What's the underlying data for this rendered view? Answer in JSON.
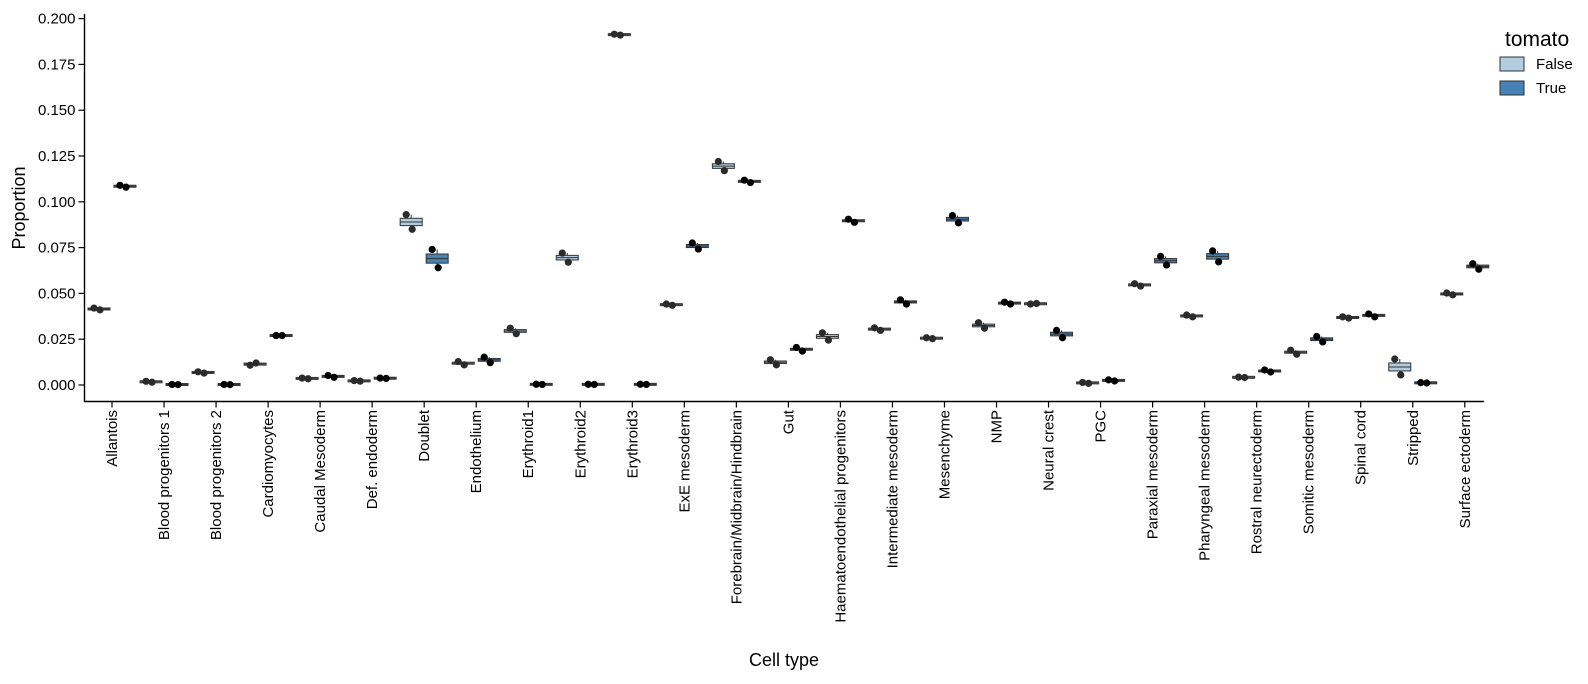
{
  "chart_data": {
    "type": "boxplot",
    "title": "",
    "xlabel": "Cell type",
    "ylabel": "Proportion",
    "ylim": [
      -0.01,
      0.2
    ],
    "yticks": [
      0.0,
      0.025,
      0.05,
      0.075,
      0.1,
      0.125,
      0.15,
      0.175,
      0.2
    ],
    "ytick_labels": [
      "0.000",
      "0.025",
      "0.050",
      "0.075",
      "0.100",
      "0.125",
      "0.150",
      "0.175",
      "0.200"
    ],
    "grid": false,
    "legend": {
      "title": "tomato",
      "placement": "top-right",
      "entries": [
        {
          "label": "False",
          "color": "#b3cde0"
        },
        {
          "label": "True",
          "color": "#4682b4"
        }
      ]
    },
    "categories": [
      "Allantois",
      "Blood progenitors 1",
      "Blood progenitors 2",
      "Cardiomyocytes",
      "Caudal Mesoderm",
      "Def. endoderm",
      "Doublet",
      "Endothelium",
      "Erythroid1",
      "Erythroid2",
      "Erythroid3",
      "ExE mesoderm",
      "Forebrain/Midbrain/Hindbrain",
      "Gut",
      "Haematoendothelial progenitors",
      "Intermediate mesoderm",
      "Mesenchyme",
      "NMP",
      "Neural crest",
      "PGC",
      "Paraxial mesoderm",
      "Pharyngeal mesoderm",
      "Rostral neurectoderm",
      "Somitic mesoderm",
      "Spinal cord",
      "Stripped",
      "Surface ectoderm"
    ],
    "series": [
      {
        "name": "False",
        "color": "#b3cde0",
        "points": [
          [
            0.042,
            0.041
          ],
          [
            0.002,
            0.0015
          ],
          [
            0.0072,
            0.0065
          ],
          [
            0.0108,
            0.012
          ],
          [
            0.0038,
            0.0034
          ],
          [
            0.0024,
            0.0021
          ],
          [
            0.093,
            0.085
          ],
          [
            0.0128,
            0.011
          ],
          [
            0.031,
            0.028
          ],
          [
            0.072,
            0.067
          ],
          [
            0.1915,
            0.191
          ],
          [
            0.0442,
            0.0435
          ],
          [
            0.122,
            0.117
          ],
          [
            0.0138,
            0.011
          ],
          [
            0.0285,
            0.0245
          ],
          [
            0.0312,
            0.0298
          ],
          [
            0.0258,
            0.0253
          ],
          [
            0.034,
            0.031
          ],
          [
            0.0442,
            0.0445
          ],
          [
            0.0014,
            0.0009
          ],
          [
            0.0553,
            0.054
          ],
          [
            0.0382,
            0.0372
          ],
          [
            0.0043,
            0.0041
          ],
          [
            0.019,
            0.0168
          ],
          [
            0.0372,
            0.0365
          ],
          [
            0.0142,
            0.0055
          ],
          [
            0.0502,
            0.0492
          ]
        ]
      },
      {
        "name": "True",
        "color": "#4682b4",
        "points": [
          [
            0.109,
            0.108
          ],
          [
            0.0003,
            0.0002
          ],
          [
            0.0003,
            0.0002
          ],
          [
            0.027,
            0.027
          ],
          [
            0.0052,
            0.0042
          ],
          [
            0.0038,
            0.0036
          ],
          [
            0.074,
            0.064
          ],
          [
            0.0152,
            0.0122
          ],
          [
            0.0004,
            0.0003
          ],
          [
            0.0004,
            0.0003
          ],
          [
            0.0004,
            0.0003
          ],
          [
            0.0775,
            0.0742
          ],
          [
            0.1118,
            0.1105
          ],
          [
            0.0205,
            0.0185
          ],
          [
            0.0905,
            0.0888
          ],
          [
            0.0465,
            0.0442
          ],
          [
            0.0925,
            0.0885
          ],
          [
            0.0452,
            0.0442
          ],
          [
            0.0298,
            0.0258
          ],
          [
            0.0028,
            0.0022
          ],
          [
            0.0702,
            0.0655
          ],
          [
            0.0732,
            0.0672
          ],
          [
            0.0082,
            0.0071
          ],
          [
            0.0265,
            0.0235
          ],
          [
            0.0388,
            0.0372
          ],
          [
            0.0013,
            0.0011
          ],
          [
            0.0662,
            0.0632
          ]
        ]
      }
    ]
  }
}
